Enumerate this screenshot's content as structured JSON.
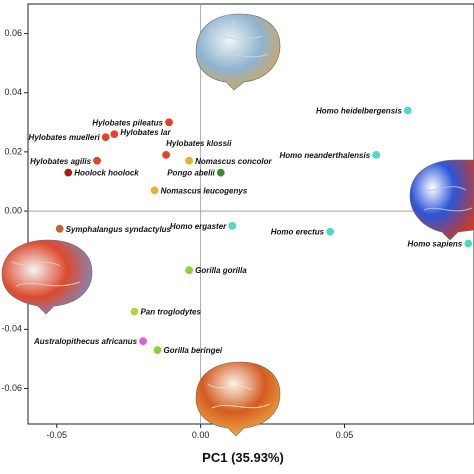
{
  "chart_data": {
    "type": "scatter",
    "xlabel": "PC1 (35.93%)",
    "ylabel": "",
    "xlim": [
      -0.06,
      0.095
    ],
    "ylim": [
      -0.072,
      0.07
    ],
    "xticks": [
      -0.05,
      0.0,
      0.05
    ],
    "yticks": [
      -0.06,
      -0.04,
      -0.02,
      0.0,
      0.02,
      0.04,
      0.06
    ],
    "xtick_labels": [
      "-0.05",
      "0.00",
      "0.05"
    ],
    "ytick_labels": [
      "-0.06",
      "-0.04",
      "-0.02",
      "0.00",
      "0.02",
      "0.04",
      "0.06"
    ],
    "grid": false,
    "zero_lines": true,
    "points": [
      {
        "label": "Homo heidelbergensis",
        "x": 0.072,
        "y": 0.034,
        "color": "#4fd8c4",
        "anchor": "end",
        "dx": -6,
        "dy": 3
      },
      {
        "label": "Homo neanderthalensis",
        "x": 0.061,
        "y": 0.019,
        "color": "#4fd8c4",
        "anchor": "end",
        "dx": -6,
        "dy": 3
      },
      {
        "label": "Homo sapiens",
        "x": 0.093,
        "y": -0.011,
        "color": "#4fd8c4",
        "anchor": "end",
        "dx": -6,
        "dy": 3
      },
      {
        "label": "Homo erectus",
        "x": 0.045,
        "y": -0.007,
        "color": "#4fd8c4",
        "anchor": "end",
        "dx": -6,
        "dy": 3
      },
      {
        "label": "Homo ergaster",
        "x": 0.011,
        "y": -0.005,
        "color": "#4fd8c4",
        "anchor": "end",
        "dx": -6,
        "dy": 3
      },
      {
        "label": "Hylobates pileatus",
        "x": -0.011,
        "y": 0.03,
        "color": "#e8412a",
        "anchor": "end",
        "dx": -6,
        "dy": 3
      },
      {
        "label": "Hylobates lar",
        "x": -0.03,
        "y": 0.026,
        "color": "#e8412a",
        "anchor": "start",
        "dx": 6,
        "dy": 1
      },
      {
        "label": "Hylobates muelleri",
        "x": -0.033,
        "y": 0.025,
        "color": "#e8412a",
        "anchor": "end",
        "dx": -6,
        "dy": 3
      },
      {
        "label": "Hylobates klossii",
        "x": -0.012,
        "y": 0.019,
        "color": "#e8412a",
        "anchor": "start",
        "dx": 0,
        "dy": -9
      },
      {
        "label": "Hylobates agilis",
        "x": -0.036,
        "y": 0.017,
        "color": "#e8412a",
        "anchor": "end",
        "dx": -6,
        "dy": 3
      },
      {
        "label": "Hoolock hoolock",
        "x": -0.046,
        "y": 0.013,
        "color": "#a81c10",
        "anchor": "start",
        "dx": 6,
        "dy": 3
      },
      {
        "label": "Nomascus concolor",
        "x": -0.004,
        "y": 0.017,
        "color": "#e6b229",
        "anchor": "start",
        "dx": 6,
        "dy": 3
      },
      {
        "label": "Pongo abelii",
        "x": 0.007,
        "y": 0.013,
        "color": "#3f8a2c",
        "anchor": "end",
        "dx": -6,
        "dy": 3
      },
      {
        "label": "Nomascus leucogenys",
        "x": -0.016,
        "y": 0.007,
        "color": "#e6b229",
        "anchor": "start",
        "dx": 6,
        "dy": 3
      },
      {
        "label": "Symphalangus syndactylus",
        "x": -0.049,
        "y": -0.006,
        "color": "#c0662a",
        "anchor": "start",
        "dx": 6,
        "dy": 3
      },
      {
        "label": "Gorilla gorilla",
        "x": -0.004,
        "y": -0.02,
        "color": "#8cd23a",
        "anchor": "start",
        "dx": 6,
        "dy": 3
      },
      {
        "label": "Pan troglodytes",
        "x": -0.023,
        "y": -0.034,
        "color": "#b8d43a",
        "anchor": "start",
        "dx": 6,
        "dy": 3
      },
      {
        "label": "Australopithecus africanus",
        "x": -0.02,
        "y": -0.044,
        "color": "#e05fd8",
        "anchor": "end",
        "dx": -6,
        "dy": 3
      },
      {
        "label": "Gorilla beringei",
        "x": -0.015,
        "y": -0.047,
        "color": "#8cd23a",
        "anchor": "start",
        "dx": 6,
        "dy": 3
      }
    ]
  },
  "brain_renders": [
    {
      "name": "top-brain-render",
      "palette": [
        "#dfe7ec",
        "#7fa7c8",
        "#d8a24a"
      ]
    },
    {
      "name": "right-brain-render",
      "palette": [
        "#f3f3f3",
        "#2e56d6",
        "#c33a2a"
      ]
    },
    {
      "name": "left-brain-render",
      "palette": [
        "#f0f0f0",
        "#d9452b",
        "#6f8fd8"
      ]
    },
    {
      "name": "bottom-brain-render",
      "palette": [
        "#f6f1e8",
        "#d25a22",
        "#f0b24a"
      ]
    }
  ]
}
